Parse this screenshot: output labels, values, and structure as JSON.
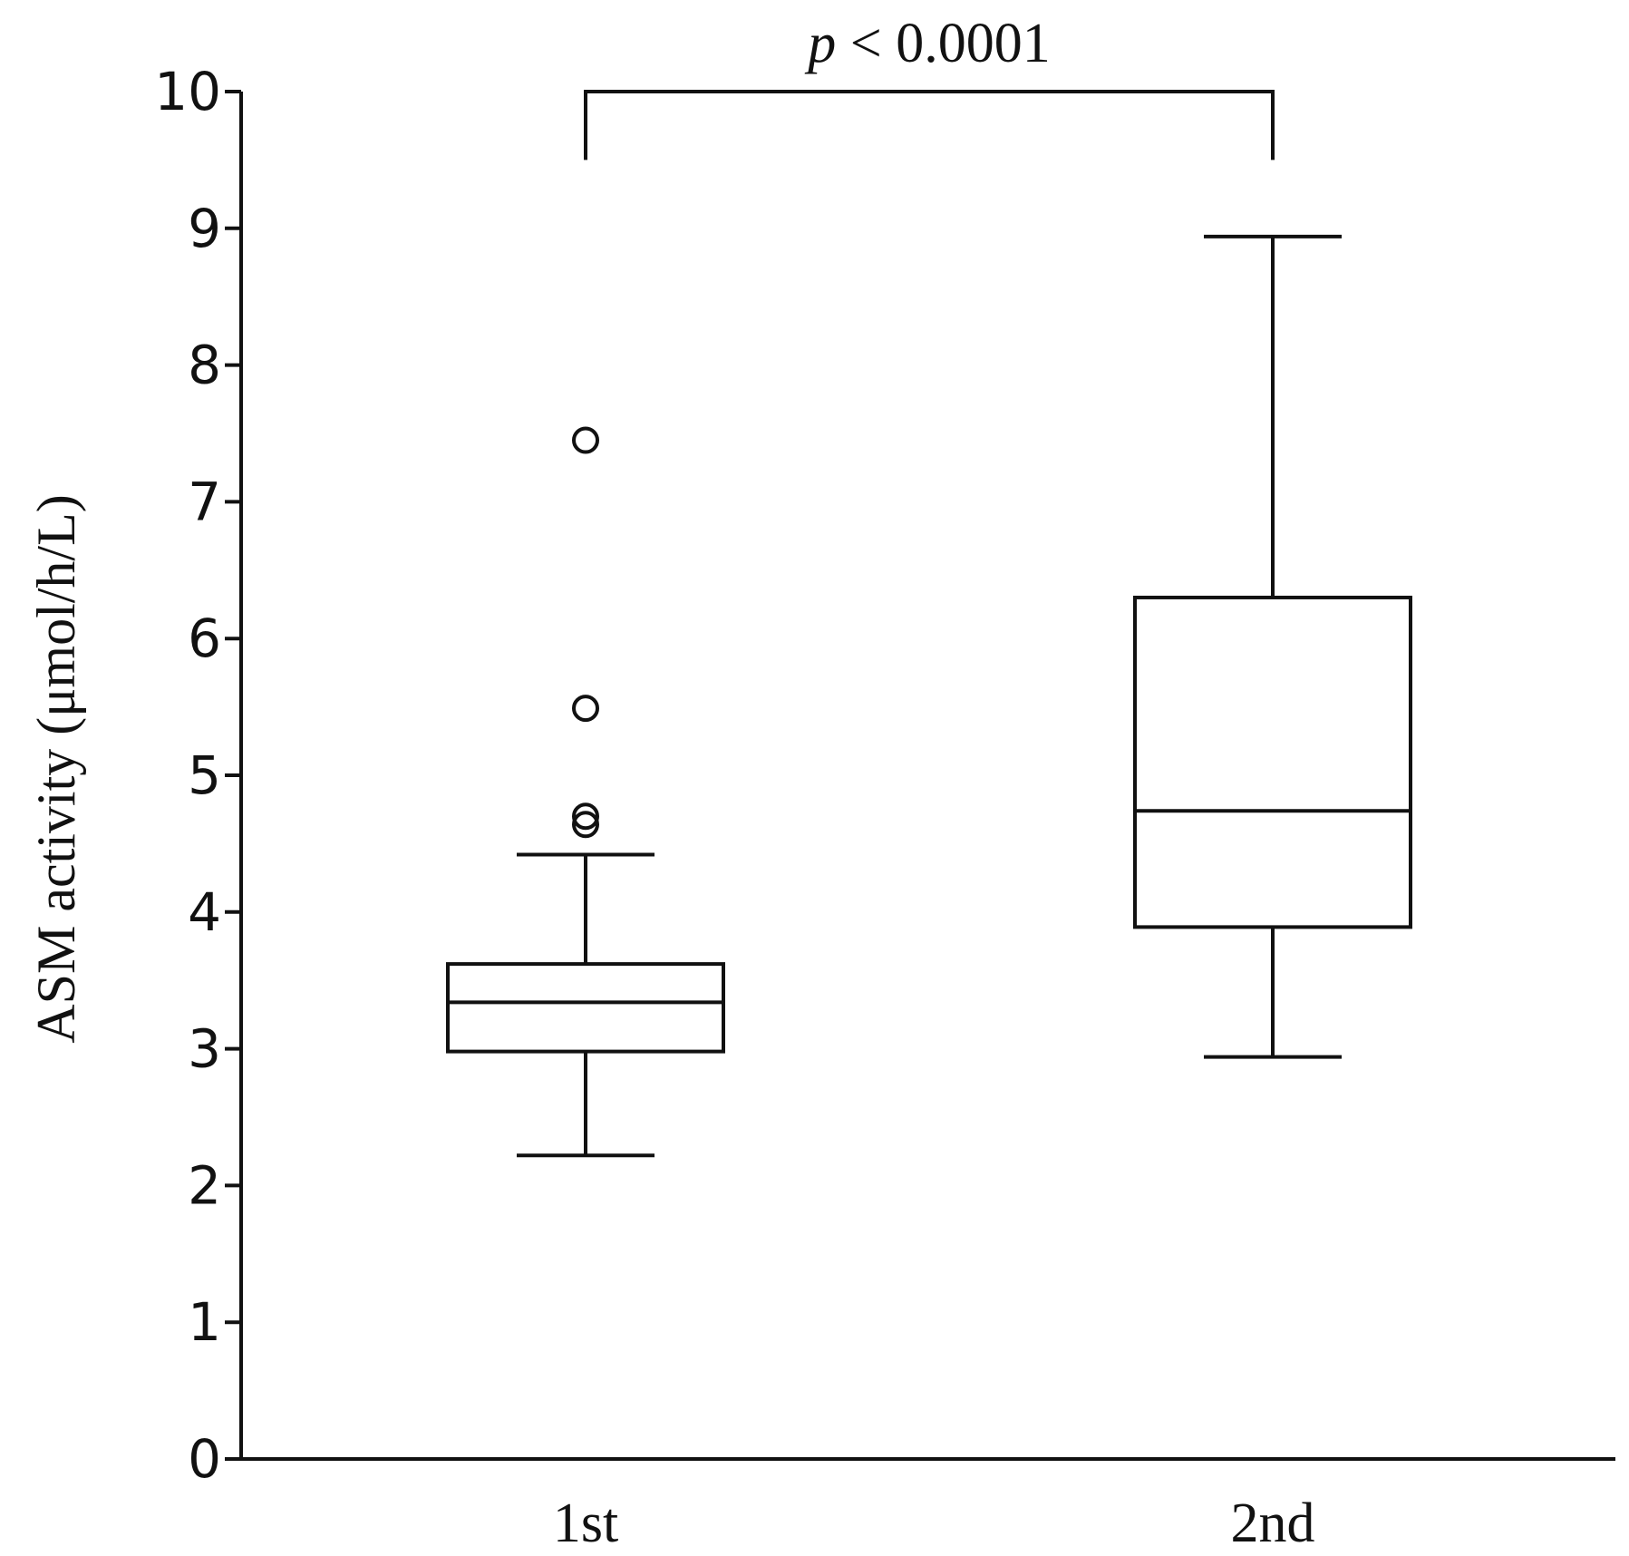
{
  "chart_data": {
    "type": "box",
    "title": "",
    "xlabel": "",
    "ylabel": "ASM activity (μmol/h/L)",
    "ylim": [
      0,
      10
    ],
    "yticks": [
      0,
      1,
      2,
      3,
      4,
      5,
      6,
      7,
      8,
      9,
      10
    ],
    "categories": [
      "1st",
      "2nd"
    ],
    "boxes": [
      {
        "category": "1st",
        "whisker_low": 2.22,
        "q1": 2.98,
        "median": 3.34,
        "q3": 3.62,
        "whisker_high": 4.42,
        "outliers": [
          4.64,
          4.7,
          5.49,
          7.45
        ]
      },
      {
        "category": "2nd",
        "whisker_low": 2.94,
        "q1": 3.89,
        "median": 4.74,
        "q3": 6.3,
        "whisker_high": 8.94,
        "outliers": []
      }
    ],
    "significance": {
      "between": [
        "1st",
        "2nd"
      ],
      "p_symbol": "p",
      "label_rest": " < 0.0001"
    },
    "grid": false,
    "legend": false
  }
}
